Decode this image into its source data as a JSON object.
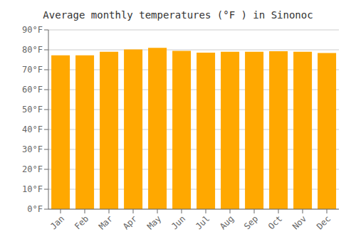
{
  "chart_data": {
    "type": "bar",
    "title": "Average monthly temperatures (°F ) in Sinonoc",
    "categories": [
      "Jan",
      "Feb",
      "Mar",
      "Apr",
      "May",
      "Jun",
      "Jul",
      "Aug",
      "Sep",
      "Oct",
      "Nov",
      "Dec"
    ],
    "values": [
      77.2,
      77.2,
      79.0,
      80.2,
      81.0,
      79.5,
      78.6,
      79.0,
      79.0,
      79.3,
      79.0,
      78.4
    ],
    "color": "#FFA800",
    "ylim": [
      0,
      90
    ],
    "yticks": [
      {
        "value": 0,
        "label": "0°F"
      },
      {
        "value": 10,
        "label": "10°F"
      },
      {
        "value": 20,
        "label": "20°F"
      },
      {
        "value": 30,
        "label": "30°F"
      },
      {
        "value": 40,
        "label": "40°F"
      },
      {
        "value": 50,
        "label": "50°F"
      },
      {
        "value": 60,
        "label": "60°F"
      },
      {
        "value": 70,
        "label": "70°F"
      },
      {
        "value": 80,
        "label": "80°F"
      },
      {
        "value": 90,
        "label": "90°F"
      }
    ],
    "grid": true
  }
}
